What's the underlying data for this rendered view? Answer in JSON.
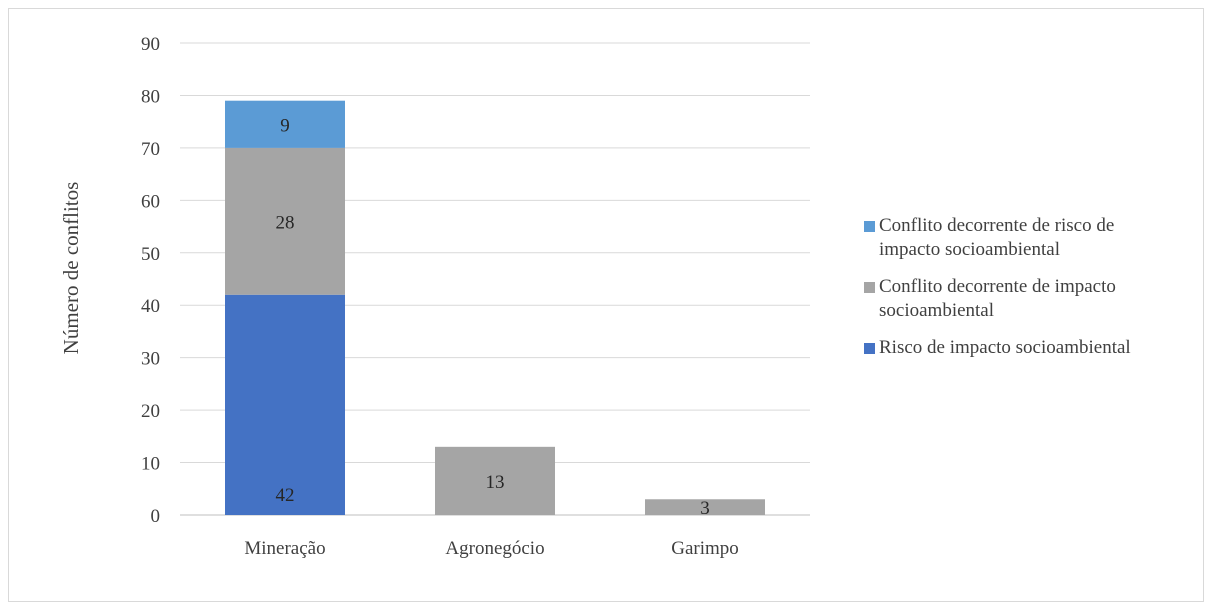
{
  "chart_data": {
    "type": "bar",
    "stacked": true,
    "title": "",
    "xlabel": "",
    "ylabel": "Número de conflitos",
    "ylim": [
      0,
      90
    ],
    "yticks": [
      0,
      10,
      20,
      30,
      40,
      50,
      60,
      70,
      80,
      90
    ],
    "categories": [
      "Mineração",
      "Agronegócio",
      "Garimpo"
    ],
    "grid": true,
    "legend_position": "right",
    "series": [
      {
        "name": "Risco de impacto socioambiental",
        "color": "#4472c4",
        "values": [
          42,
          0,
          0
        ]
      },
      {
        "name": "Conflito decorrente de impacto socioambiental",
        "color": "#a5a5a5",
        "values": [
          28,
          13,
          3
        ]
      },
      {
        "name": "Conflito decorrente de risco de impacto socioambiental",
        "color": "#5b9bd5",
        "values": [
          9,
          0,
          0
        ]
      }
    ],
    "legend_order": [
      2,
      1,
      0
    ]
  }
}
